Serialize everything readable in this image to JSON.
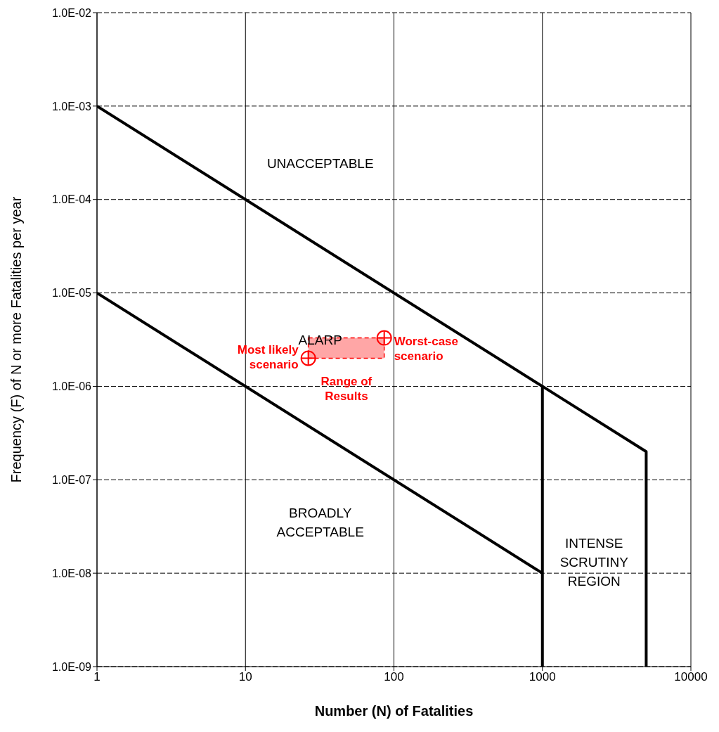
{
  "chart_data": {
    "type": "line",
    "xlabel": "Number (N) of Fatalities",
    "ylabel": "Frequency (F) of N or more Fatalities per year",
    "log": "xy",
    "grid": true,
    "legend": false,
    "xlim": [
      1,
      10000
    ],
    "xticks": [
      1,
      10,
      100,
      1000,
      10000
    ],
    "ylim": [
      1e-09,
      0.01
    ],
    "yticks": [
      {
        "value": 1e-09,
        "label": "1.0E-09"
      },
      {
        "value": 1e-08,
        "label": "1.0E-08"
      },
      {
        "value": 1e-07,
        "label": "1.0E-07"
      },
      {
        "value": 1e-06,
        "label": "1.0E-06"
      },
      {
        "value": 1e-05,
        "label": "1.0E-05"
      },
      {
        "value": 0.0001,
        "label": "1.0E-04"
      },
      {
        "value": 0.001,
        "label": "1.0E-03"
      },
      {
        "value": 0.01,
        "label": "1.0E-02"
      }
    ],
    "series": [
      {
        "color": "#000000",
        "x": [
          1,
          1000,
          1000
        ],
        "values": [
          0.001,
          1e-06,
          1e-09
        ]
      },
      {
        "color": "#000000",
        "x": [
          1000,
          5000,
          5000
        ],
        "values": [
          1e-06,
          2e-07,
          1e-09
        ]
      },
      {
        "color": "#000000",
        "x": [
          1,
          1000
        ],
        "values": [
          1e-05,
          1e-08
        ]
      },
      {
        "type": "scatter",
        "name": "Most likely scenario",
        "color": "#ff0000",
        "marker": "circle",
        "x": [
          26.5
        ],
        "values": [
          2e-06
        ]
      },
      {
        "type": "scatter",
        "name": "Worst-case scenario",
        "color": "#ff0000",
        "marker": "circle",
        "x": [
          86
        ],
        "values": [
          3.3e-06
        ]
      }
    ],
    "annotations": [
      "UNACCEPTABLE",
      "ALARP",
      "BROADLY\nACCEPTABLE",
      "INTENSE\nSCRUTINY\nREGION",
      "Range of\nResults"
    ]
  }
}
